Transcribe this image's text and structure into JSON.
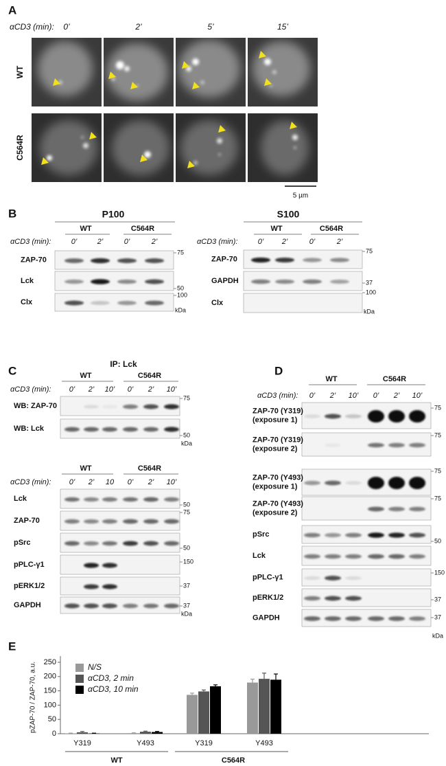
{
  "panel_a": {
    "label": "A",
    "stim_label": "αCD3 (min):",
    "times": [
      "0’",
      "2’",
      "5’",
      "15’"
    ],
    "rows": [
      "WT",
      "C564R"
    ],
    "scale_bar": "5 µm"
  },
  "panel_b": {
    "label": "B",
    "blots": [
      {
        "title": "P100",
        "groups": [
          "WT",
          "C564R"
        ],
        "stim_label": "αCD3 (min):",
        "times": [
          "0’",
          "2’",
          "0’",
          "2’"
        ],
        "rows": [
          "ZAP-70",
          "Lck",
          "Clx"
        ],
        "markers": [
          "75",
          "50",
          "100"
        ],
        "unit": "kDa"
      },
      {
        "title": "S100",
        "groups": [
          "WT",
          "C564R"
        ],
        "stim_label": "αCD3 (min):",
        "times": [
          "0’",
          "2’",
          "0’",
          "2’"
        ],
        "rows": [
          "ZAP-70",
          "GAPDH",
          "Clx"
        ],
        "markers": [
          "75",
          "37",
          "100"
        ],
        "unit": "kDa"
      }
    ]
  },
  "panel_c": {
    "label": "C",
    "title": "IP: Lck",
    "blots": [
      {
        "groups": [
          "WT",
          "C564R"
        ],
        "stim_label": "αCD3 (min):",
        "times": [
          "0’",
          "2’",
          "10’",
          "0’",
          "2’",
          "10’"
        ],
        "rows": [
          "WB: ZAP-70",
          "WB: Lck"
        ],
        "markers": [
          "75",
          "50"
        ],
        "unit": "kDa"
      },
      {
        "groups": [
          "WT",
          "C564R"
        ],
        "stim_label": "αCD3 (min):",
        "times": [
          "0’",
          "2’",
          "10",
          "0’",
          "2’",
          "10’"
        ],
        "rows": [
          "Lck",
          "ZAP-70",
          "pSrc",
          "pPLC-γ1",
          "pERK1/2",
          "GAPDH"
        ],
        "markers": [
          "50",
          "75",
          "50",
          "150",
          "37",
          "37"
        ],
        "unit": "kDa"
      }
    ]
  },
  "panel_d": {
    "label": "D",
    "groups": [
      "WT",
      "C564R"
    ],
    "stim_label": "αCD3 (min):",
    "times": [
      "0’",
      "2’",
      "10’",
      "0’",
      "2’",
      "10’"
    ],
    "rows": [
      [
        "ZAP-70 (Y319)",
        "(exposure 1)"
      ],
      [
        "ZAP-70 (Y319)",
        "(exposure 2)"
      ],
      [
        "ZAP-70 (Y493)",
        "(exposure 1)"
      ],
      [
        "ZAP-70 (Y493)",
        "(exposure 2)"
      ],
      [
        "pSrc"
      ],
      [
        "Lck"
      ],
      [
        "pPLC-γ1"
      ],
      [
        "pERK1/2"
      ],
      [
        "GAPDH"
      ]
    ],
    "markers": [
      "75",
      "75",
      "75",
      "75",
      "50",
      "150",
      "37",
      "37"
    ],
    "unit": "kDa"
  },
  "chart_data": {
    "type": "bar",
    "label": "E",
    "y_label": "pZAP-70 / ZAP-70, a.u.",
    "categories": [
      "Y319",
      "Y493",
      "Y319",
      "Y493"
    ],
    "group_labels": [
      "WT",
      "C564R"
    ],
    "series": [
      {
        "name": "N/S",
        "color": "#999999",
        "values": [
          1,
          2,
          136,
          179
        ],
        "errors": [
          1,
          1,
          6,
          12
        ]
      },
      {
        "name": "αCD3, 2 min",
        "color": "#555555",
        "values": [
          5,
          7,
          148,
          192
        ],
        "errors": [
          3,
          2,
          5,
          20
        ]
      },
      {
        "name": "αCD3, 10 min",
        "color": "#000000",
        "values": [
          1,
          6,
          166,
          189
        ],
        "errors": [
          1,
          2,
          5,
          20
        ]
      }
    ],
    "ylim": [
      0,
      250
    ],
    "yticks": [
      0,
      50,
      100,
      150,
      200,
      250
    ],
    "grid": false
  }
}
